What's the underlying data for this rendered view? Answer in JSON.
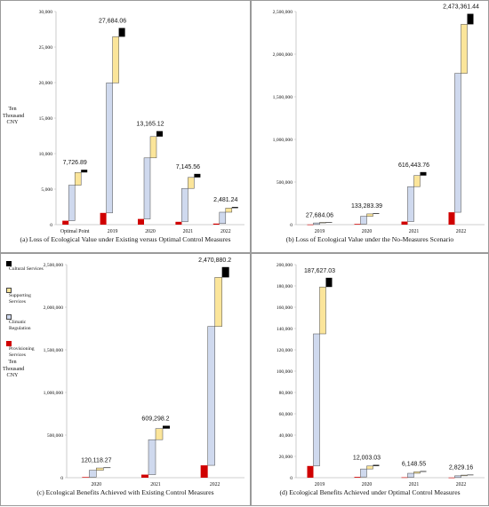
{
  "colors": {
    "provisioning": "#d00000",
    "climatic": "#cfd9ee",
    "supporting": "#fbe59a",
    "cultural": "#000000",
    "axis": "#bfbfbf",
    "text": "#111111"
  },
  "legend": {
    "items": [
      {
        "label": "Cultural Services",
        "color": "#000000"
      },
      {
        "label": "Supporting Services",
        "color": "#fbe59a"
      },
      {
        "label": "Climatic Regulation",
        "color": "#cfd9ee"
      },
      {
        "label": "Provisioning Services",
        "color": "#d00000"
      }
    ]
  },
  "panels": [
    {
      "caption": "(a) Loss of Ecological Value under Existing versus Optimal Control Measures",
      "yunit": "Ten Thousand CNY",
      "ticks": [
        "0",
        "5,000",
        "10,000",
        "15,000",
        "20,000",
        "25,000",
        "30,000"
      ]
    },
    {
      "caption": "(b) Loss of Ecological Value under the No-Measures Scenario",
      "yunit": "",
      "ticks": [
        "0",
        "500,000",
        "1,000,000",
        "1,500,000",
        "2,000,000",
        "2,500,000"
      ]
    },
    {
      "caption": "(c) Ecological Benefits Achieved with Existing Control Measures",
      "yunit": "Ten Thousand CNY",
      "ticks": [
        "0",
        "500,000",
        "1,000,000",
        "1,500,000",
        "2,000,000",
        "2,500,000"
      ]
    },
    {
      "caption": "(d) Ecological Benefits Achieved under Optimal Control Measures",
      "yunit": "",
      "ticks": [
        "0",
        "20,000",
        "40,000",
        "60,000",
        "80,000",
        "100,000",
        "120,000",
        "140,000",
        "160,000",
        "180,000",
        "200,000"
      ]
    }
  ],
  "chart_data": [
    {
      "type": "bar",
      "stacking": "waterfall",
      "title": "(a) Loss of Ecological Value under Existing versus Optimal Control Measures",
      "ylabel": "Ten Thousand CNY",
      "ylim": [
        0,
        30000
      ],
      "grid": false,
      "categories": [
        "Optimal Point",
        "2019",
        "2020",
        "2021",
        "2022"
      ],
      "series": [
        {
          "name": "Provisioning Services",
          "values": [
            550,
            1650,
            800,
            400,
            150
          ]
        },
        {
          "name": "Climatic Regulation",
          "values": [
            5000,
            18300,
            8600,
            4700,
            1600
          ]
        },
        {
          "name": "Supporting Services",
          "values": [
            1800,
            6500,
            3000,
            1550,
            580
          ]
        },
        {
          "name": "Cultural Services",
          "values": [
            376.89,
            1234.06,
            765.12,
            495.56,
            151.24
          ]
        }
      ],
      "totals": [
        7726.89,
        27684.06,
        13165.12,
        7145.56,
        2481.24
      ],
      "total_labels": [
        "7,726.89",
        "27,684.06",
        "13,165.12",
        "7,145.56",
        "2,481.24"
      ]
    },
    {
      "type": "bar",
      "stacking": "waterfall",
      "title": "(b) Loss of Ecological Value under the No-Measures Scenario",
      "ylim": [
        0,
        2500000
      ],
      "grid": false,
      "categories": [
        "2019",
        "2020",
        "2021",
        "2022"
      ],
      "series": [
        {
          "name": "Provisioning Services",
          "values": [
            1700,
            8000,
            36000,
            145000
          ]
        },
        {
          "name": "Climatic Regulation",
          "values": [
            18300,
            90000,
            410000,
            1630000
          ]
        },
        {
          "name": "Supporting Services",
          "values": [
            6500,
            28000,
            130000,
            575000
          ]
        },
        {
          "name": "Cultural Services",
          "values": [
            1184.06,
            7283.39,
            40443.76,
            123361.44
          ]
        }
      ],
      "totals": [
        27684.06,
        133283.39,
        616443.76,
        2473361.44
      ],
      "total_labels": [
        "27,684.06",
        "133,283.39",
        "616,443.76",
        "2,473,361.44"
      ]
    },
    {
      "type": "bar",
      "stacking": "waterfall",
      "title": "(c) Ecological Benefits Achieved with Existing Control Measures",
      "ylabel": "Ten Thousand CNY",
      "ylim": [
        0,
        2500000
      ],
      "grid": false,
      "categories": [
        "2020",
        "2021",
        "2022"
      ],
      "series": [
        {
          "name": "Provisioning Services",
          "values": [
            7000,
            36000,
            145000
          ]
        },
        {
          "name": "Climatic Regulation",
          "values": [
            80000,
            410000,
            1630000
          ]
        },
        {
          "name": "Supporting Services",
          "values": [
            27000,
            130000,
            575000
          ]
        },
        {
          "name": "Cultural Services",
          "values": [
            6118.27,
            33298.2,
            120880.2
          ]
        }
      ],
      "totals": [
        120118.27,
        609298.2,
        2470880.2
      ],
      "total_labels": [
        "120,118.27",
        "609,298.2",
        "2,470,880.2"
      ]
    },
    {
      "type": "bar",
      "stacking": "waterfall",
      "title": "(d) Ecological Benefits Achieved under Optimal Control Measures",
      "ylim": [
        0,
        200000
      ],
      "grid": false,
      "categories": [
        "2019",
        "2020",
        "2021",
        "2022"
      ],
      "series": [
        {
          "name": "Provisioning Services",
          "values": [
            11000,
            700,
            350,
            150
          ]
        },
        {
          "name": "Climatic Regulation",
          "values": [
            124000,
            7500,
            3800,
            1650
          ]
        },
        {
          "name": "Supporting Services",
          "values": [
            44000,
            2800,
            1400,
            650
          ]
        },
        {
          "name": "Cultural Services",
          "values": [
            8627.03,
            1003.03,
            598.55,
            379.16
          ]
        }
      ],
      "totals": [
        187627.03,
        12003.03,
        6148.55,
        2829.16
      ],
      "total_labels": [
        "187,627.03",
        "12,003.03",
        "6,148.55",
        "2,829.16"
      ]
    }
  ]
}
